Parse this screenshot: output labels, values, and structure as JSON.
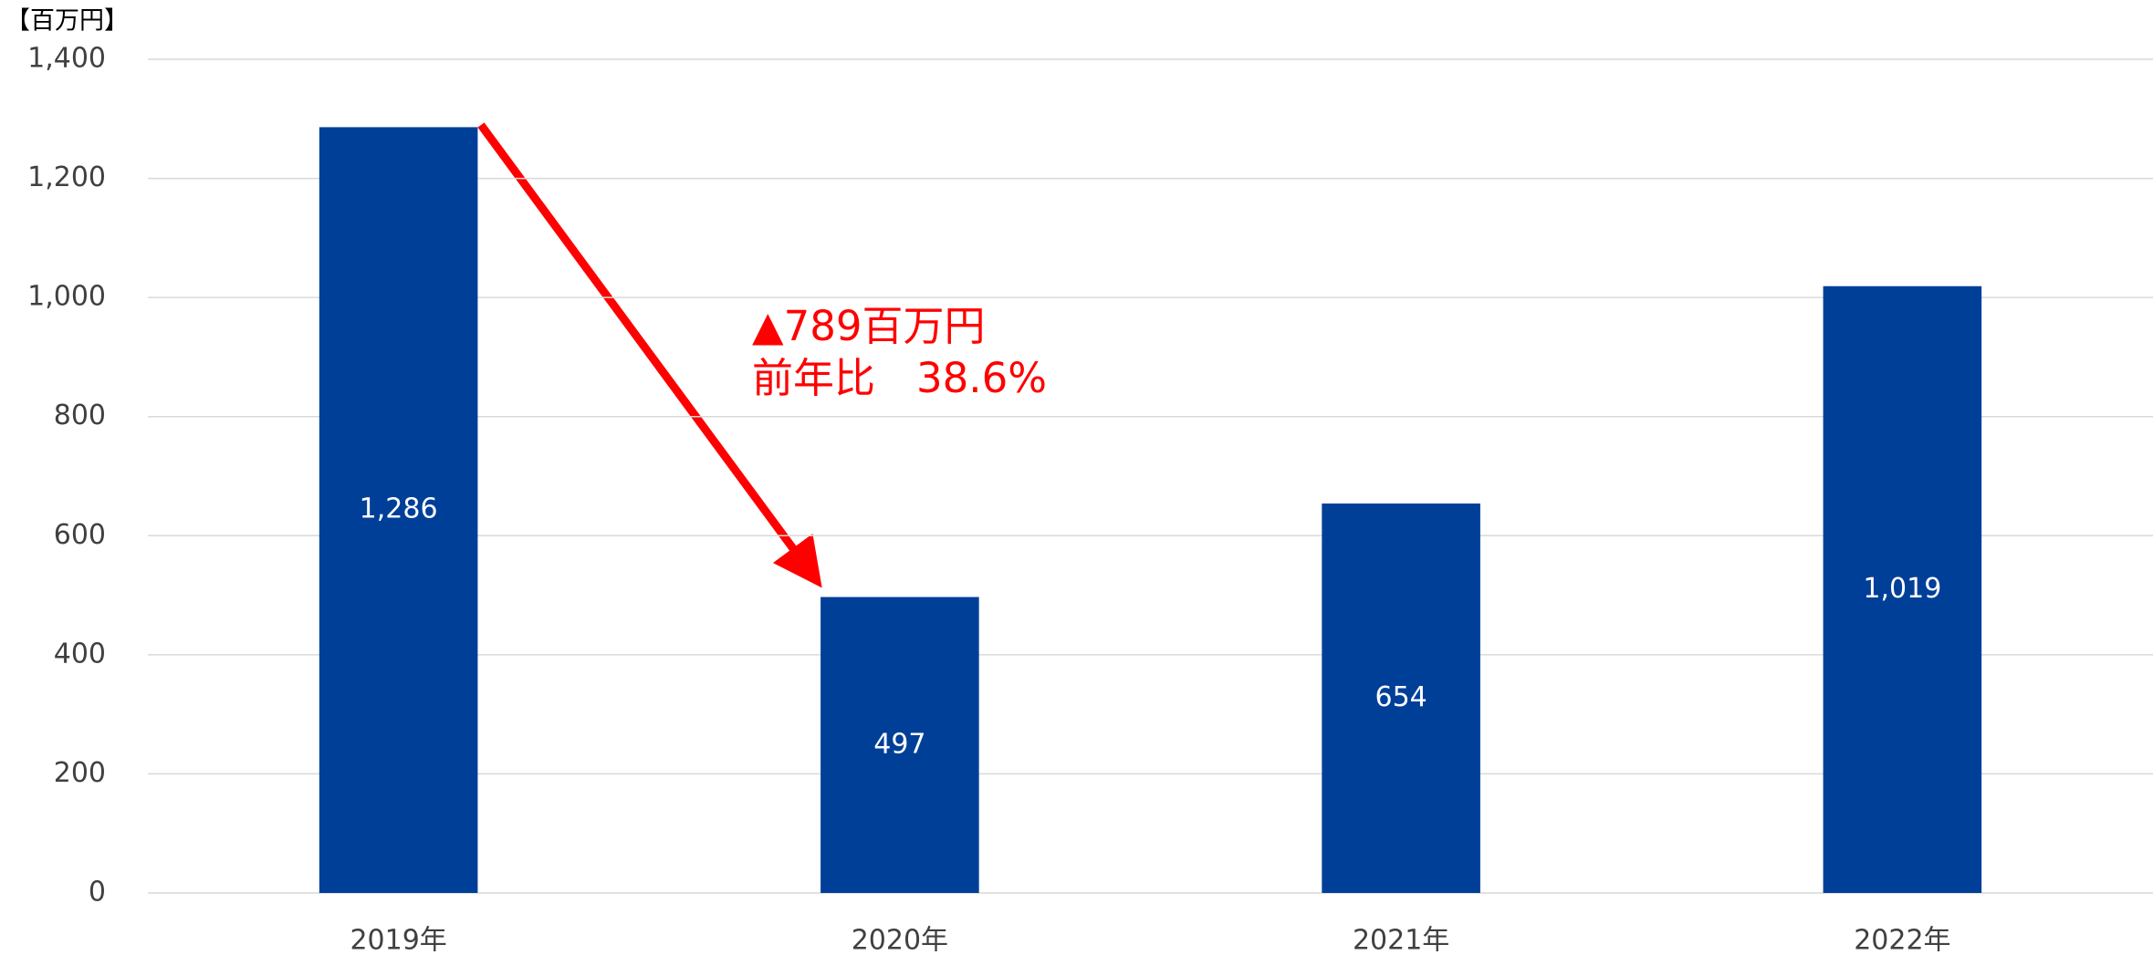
{
  "chart_data": {
    "type": "bar",
    "unit_label": "【百万円】",
    "categories": [
      "2019年",
      "2020年",
      "2021年",
      "2022年"
    ],
    "values": [
      1286,
      497,
      654,
      1019
    ],
    "value_labels": [
      "1,286",
      "497",
      "654",
      "1,019"
    ],
    "color": "#003f98",
    "ylim": [
      0,
      1400
    ],
    "yticks": [
      0,
      200,
      400,
      600,
      800,
      {
        "value": 1000,
        "label": "1,000"
      },
      {
        "value": 1200,
        "label": "1,200"
      },
      {
        "value": 1400,
        "label": "1,400"
      }
    ],
    "grid": true,
    "annotations": [
      "▲789百万円",
      "前年比　38.6%"
    ]
  }
}
